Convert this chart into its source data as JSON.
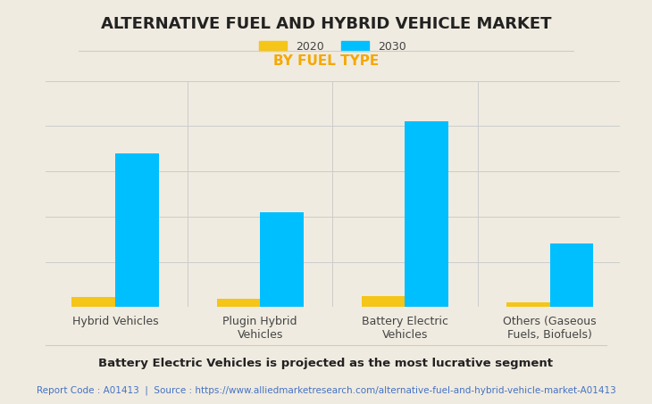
{
  "title": "ALTERNATIVE FUEL AND HYBRID VEHICLE MARKET",
  "subtitle": "BY FUEL TYPE",
  "categories": [
    "Hybrid Vehicles",
    "Plugin Hybrid\nVehicles",
    "Battery Electric\nVehicles",
    "Others (Gaseous\nFuels, Biofuels)"
  ],
  "series": {
    "2020": [
      4.5,
      3.5,
      5.0,
      2.0
    ],
    "2030": [
      68,
      42,
      82,
      28
    ]
  },
  "color_2020": "#F5C518",
  "color_2030": "#00BFFF",
  "subtitle_color": "#F5A800",
  "background_color": "#F0EBE0",
  "plot_bg_color": "#F0EBE0",
  "ylabel": "",
  "ylim": [
    0,
    100
  ],
  "legend_labels": [
    "2020",
    "2030"
  ],
  "footnote_bold": "Battery Electric Vehicles is projected as the most lucrative segment",
  "footnote_report": "Report Code : A01413  |  Source : https://www.alliedmarketresearch.com/alternative-fuel-and-hybrid-vehicle-market-A01413",
  "footnote_color": "#4472C4",
  "title_fontsize": 13,
  "subtitle_fontsize": 11,
  "axis_label_fontsize": 9,
  "legend_fontsize": 9,
  "bar_width": 0.3,
  "grid_color": "#CCCCCC"
}
